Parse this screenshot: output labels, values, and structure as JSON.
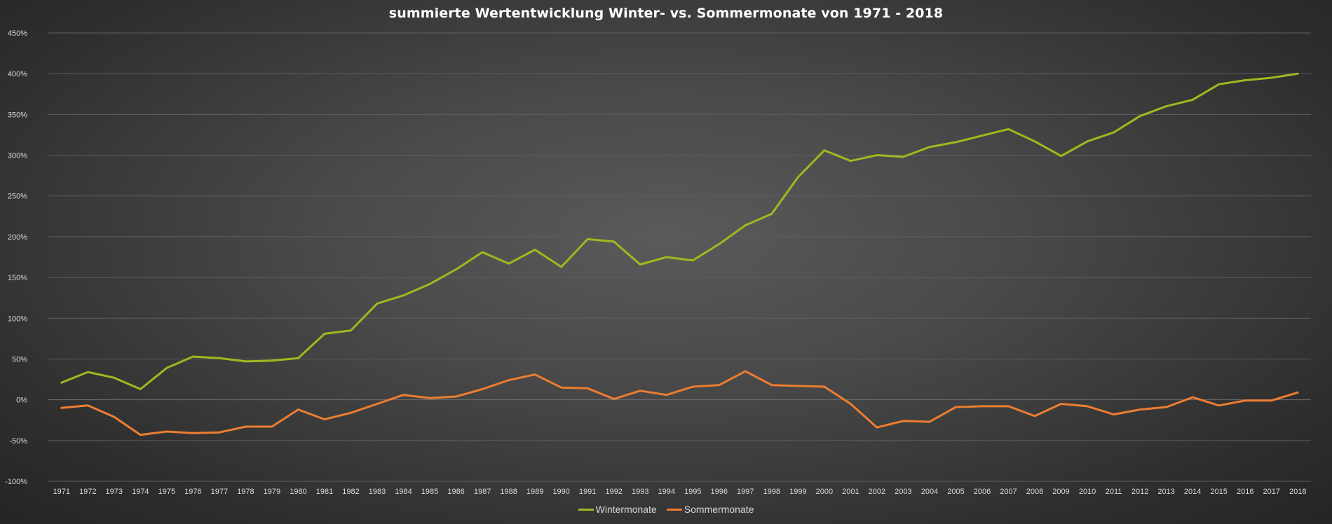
{
  "chart_data": {
    "type": "line",
    "title": "summierte Wertentwicklung Winter- vs. Sommermonate von 1971 - 2018",
    "xlabel": "",
    "ylabel": "",
    "ylim": [
      -100,
      450
    ],
    "y_ticks": [
      450,
      400,
      350,
      300,
      250,
      200,
      150,
      100,
      50,
      0,
      -50,
      -100
    ],
    "y_tick_format": "percent",
    "grid": true,
    "legend_position": "bottom",
    "x": [
      1971,
      1972,
      1973,
      1974,
      1975,
      1976,
      1977,
      1978,
      1979,
      1980,
      1981,
      1982,
      1983,
      1984,
      1985,
      1986,
      1987,
      1988,
      1989,
      1990,
      1991,
      1992,
      1993,
      1994,
      1995,
      1996,
      1997,
      1998,
      1999,
      2000,
      2001,
      2002,
      2003,
      2004,
      2005,
      2006,
      2007,
      2008,
      2009,
      2010,
      2011,
      2012,
      2013,
      2014,
      2015,
      2016,
      2017,
      2018
    ],
    "series": [
      {
        "name": "Wintermonate",
        "color": "#9bbb1f",
        "values": [
          21,
          34,
          27,
          13,
          39,
          53,
          51,
          47,
          48,
          51,
          81,
          85,
          118,
          128,
          142,
          160,
          181,
          167,
          184,
          163,
          197,
          194,
          166,
          175,
          171,
          191,
          214,
          228,
          273,
          306,
          293,
          300,
          298,
          310,
          316,
          324,
          332,
          317,
          299,
          317,
          328,
          348,
          360,
          368,
          387,
          392,
          395,
          400
        ]
      },
      {
        "name": "Sommermonate",
        "color": "#ed7d31",
        "values": [
          -10,
          -7,
          -21,
          -43,
          -39,
          -41,
          -40,
          -33,
          -33,
          -12,
          -24,
          -16,
          -5,
          6,
          2,
          4,
          13,
          24,
          31,
          15,
          14,
          1,
          11,
          6,
          16,
          18,
          35,
          18,
          17,
          16,
          -5,
          -34,
          -26,
          -27,
          -9,
          -8,
          -8,
          -20,
          -5,
          -8,
          -18,
          -12,
          -9,
          3,
          -7,
          -1,
          -1,
          9
        ]
      }
    ]
  }
}
